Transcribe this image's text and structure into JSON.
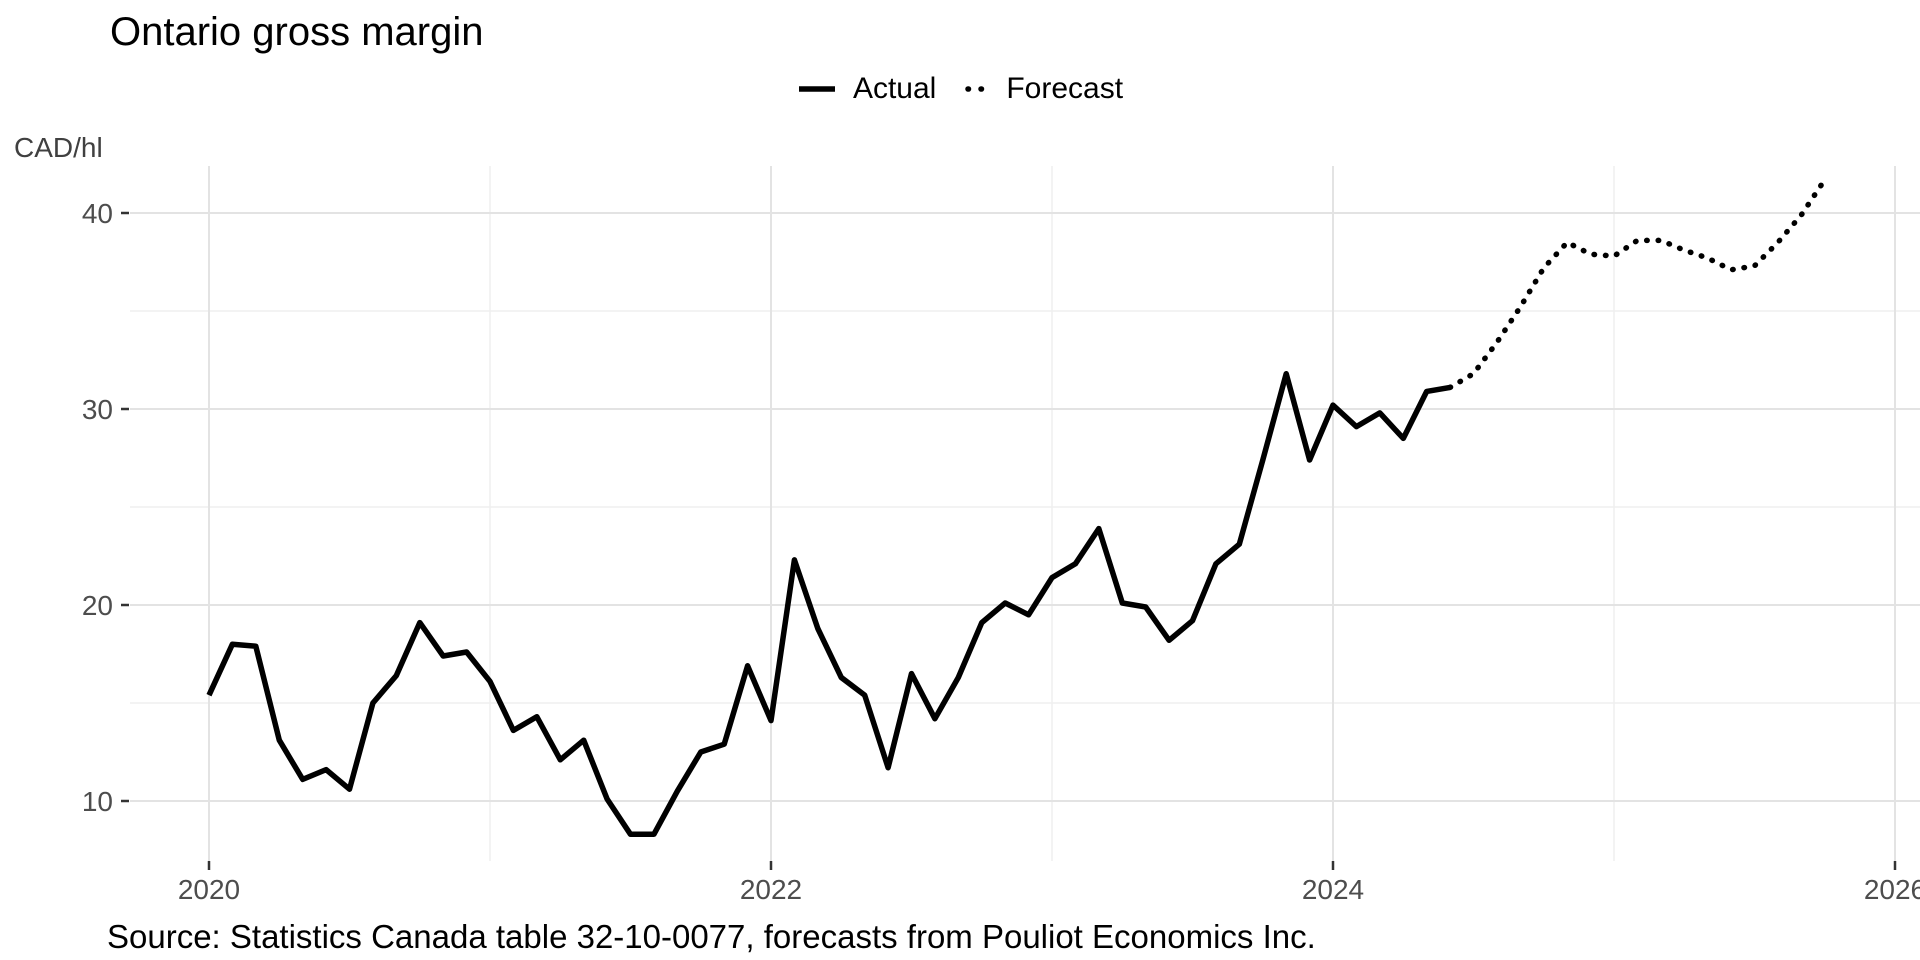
{
  "chart_data": {
    "type": "line",
    "title": "Ontario gross margin",
    "unit_label": "CAD/hl",
    "caption": "Source: Statistics Canada table 32-10-0077, forecasts from Pouliot Economics Inc.",
    "legend": [
      {
        "label": "Actual",
        "linetype": "solid"
      },
      {
        "label": "Forecast",
        "linetype": "dotted"
      }
    ],
    "colors": {
      "line": "#000000",
      "grid_major": "#e3e3e3",
      "grid_minor": "#efefef",
      "tick_mark": "#333333",
      "tick_label": "#4d4d4d"
    },
    "x_axis": {
      "major_ticks": [
        2020,
        2022,
        2024,
        2026
      ],
      "major_tick_labels": [
        "2020",
        "2022",
        "2024",
        "2026"
      ],
      "minor_ticks": [
        2021,
        2023,
        2025
      ]
    },
    "y_axis": {
      "major_ticks": [
        40,
        30,
        20,
        10
      ],
      "major_tick_labels": [
        "40",
        "30",
        "20",
        "10"
      ],
      "minor_ticks": [
        35,
        25,
        15
      ],
      "range_shown": [
        7,
        43
      ]
    },
    "series": [
      {
        "name": "Actual",
        "linetype": "solid",
        "start": "2020-01",
        "values": [
          15.4,
          18.0,
          17.9,
          13.1,
          11.1,
          11.6,
          10.6,
          15.0,
          16.4,
          19.1,
          17.4,
          17.6,
          16.1,
          13.6,
          14.3,
          12.1,
          13.1,
          10.1,
          8.3,
          8.3,
          10.5,
          12.5,
          12.9,
          16.9,
          14.1,
          22.3,
          18.8,
          16.3,
          15.4,
          11.7,
          16.5,
          14.2,
          16.3,
          19.1,
          20.1,
          19.5,
          21.4,
          22.1,
          23.9,
          20.1,
          19.9,
          18.2,
          19.2,
          22.1,
          23.1,
          27.4,
          31.8,
          27.4,
          30.2,
          29.1,
          29.8,
          28.5,
          30.9,
          31.1
        ]
      },
      {
        "name": "Forecast",
        "linetype": "dotted",
        "start": "2024-06",
        "values": [
          31.1,
          31.8,
          33.4,
          35.2,
          37.2,
          38.5,
          37.9,
          37.8,
          38.6,
          38.6,
          38.1,
          37.7,
          37.1,
          37.3,
          38.5,
          39.9,
          41.7
        ]
      }
    ]
  }
}
